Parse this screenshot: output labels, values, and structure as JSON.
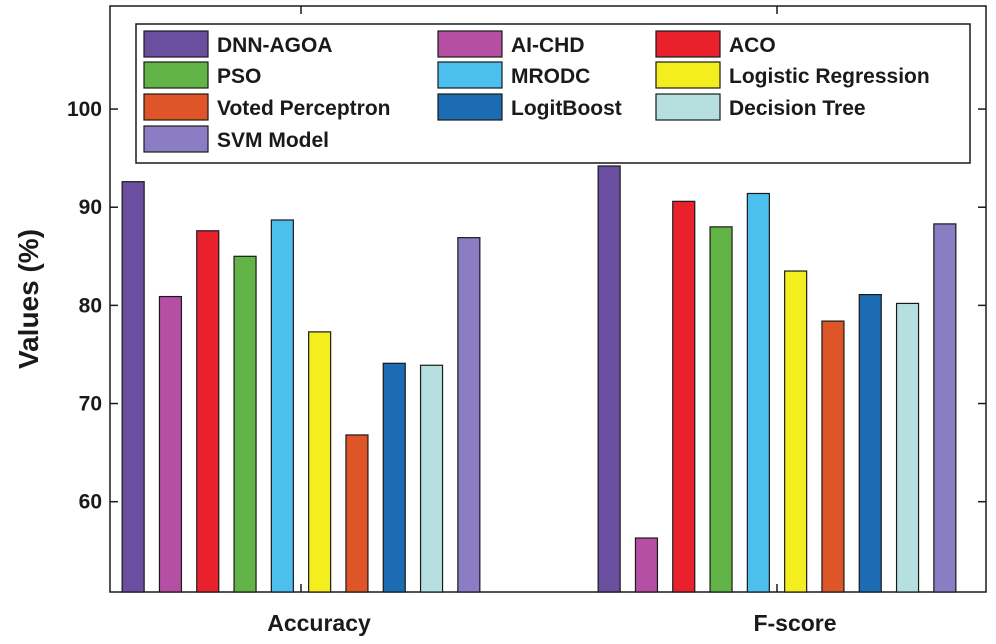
{
  "chart_data": {
    "type": "bar",
    "title": "",
    "xlabel": "",
    "ylabel": "Values (%)",
    "ylim": [
      50.8,
      110.5
    ],
    "yticks": [
      60,
      70,
      80,
      90,
      100
    ],
    "grid": false,
    "legend_position": "top-inside",
    "categories": [
      "Accuracy",
      "F-score"
    ],
    "series": [
      {
        "name": "DNN-AGOA",
        "color": "#6a4ea0",
        "values": [
          92.6,
          94.2
        ]
      },
      {
        "name": "AI-CHD",
        "color": "#b44fa3",
        "values": [
          80.9,
          56.3
        ]
      },
      {
        "name": "ACO",
        "color": "#e8212c",
        "values": [
          87.6,
          90.6
        ]
      },
      {
        "name": "PSO",
        "color": "#62b446",
        "values": [
          85.0,
          88.0
        ]
      },
      {
        "name": "MRODC",
        "color": "#4dbfee",
        "values": [
          88.7,
          91.4
        ]
      },
      {
        "name": "Logistic Regression",
        "color": "#f4ee1f",
        "values": [
          77.3,
          83.5
        ]
      },
      {
        "name": "Voted Perceptron",
        "color": "#de5627",
        "values": [
          66.8,
          78.4
        ]
      },
      {
        "name": "LogitBoost",
        "color": "#1b6cb3",
        "values": [
          74.1,
          81.1
        ]
      },
      {
        "name": "Decision Tree",
        "color": "#b5e0df",
        "values": [
          73.9,
          80.2
        ]
      },
      {
        "name": "SVM Model",
        "color": "#8b7dc4",
        "values": [
          86.9,
          88.3
        ]
      }
    ]
  }
}
